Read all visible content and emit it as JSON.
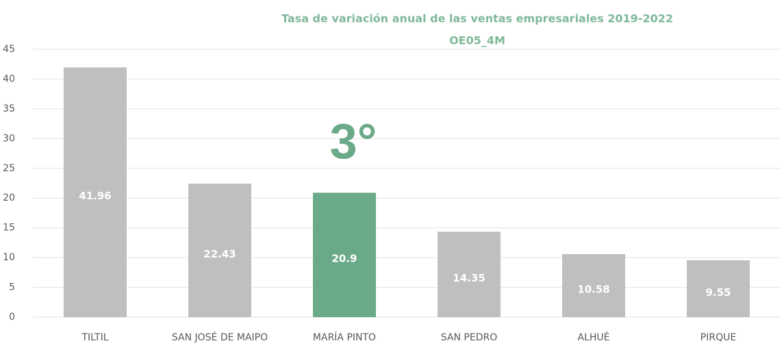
{
  "chart_data": {
    "type": "bar",
    "title": "Tasa de variación anual de las ventas empresariales 2019-2022",
    "subtitle": "OE05_4M",
    "annotation": "3°",
    "categories": [
      "TILTIL",
      "SAN JOSÉ DE MAIPO",
      "MARÍA PINTO",
      "SAN PEDRO",
      "ALHUÉ",
      "PIRQUE"
    ],
    "values": [
      41.96,
      22.43,
      20.9,
      14.35,
      10.58,
      9.55
    ],
    "colors": [
      "#bfbfbf",
      "#bfbfbf",
      "#6aaa88",
      "#bfbfbf",
      "#bfbfbf",
      "#bfbfbf"
    ],
    "ylim": [
      0,
      45
    ],
    "yticks": [
      0,
      5,
      10,
      15,
      20,
      25,
      30,
      35,
      40,
      45
    ],
    "grid": true
  }
}
